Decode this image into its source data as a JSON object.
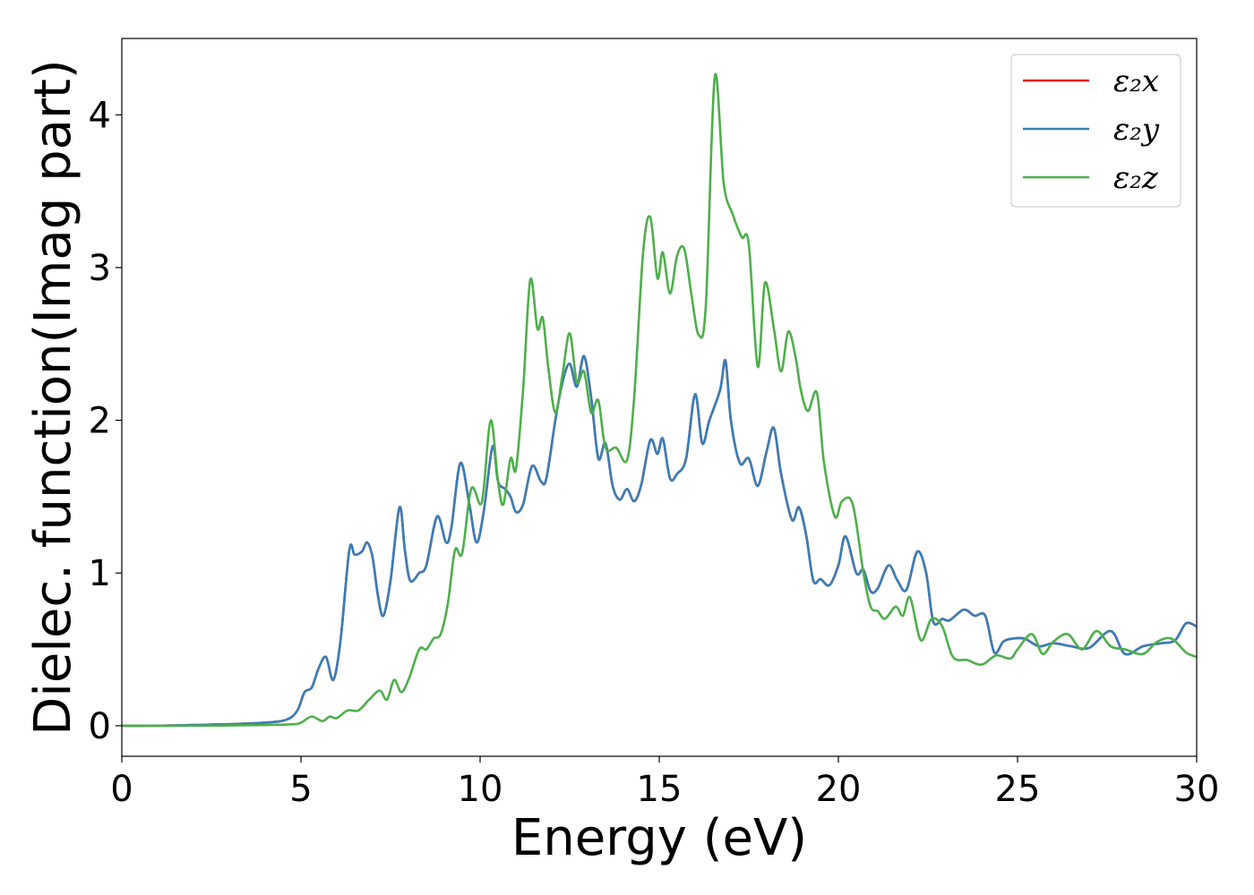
{
  "chart_data": {
    "type": "line",
    "xlabel": "Energy (eV)",
    "ylabel": "Dielec. function(Imag part)",
    "xlim": [
      0,
      30
    ],
    "ylim": [
      -0.2,
      4.5
    ],
    "xticks": [
      0,
      5,
      10,
      15,
      20,
      25,
      30
    ],
    "yticks": [
      0,
      1,
      2,
      3,
      4
    ],
    "xtick_labels": [
      "0",
      "5",
      "10",
      "15",
      "20",
      "25",
      "30"
    ],
    "ytick_labels": [
      "0",
      "1",
      "2",
      "3",
      "4"
    ],
    "grid": false,
    "legend_position": "top-right",
    "series": [
      {
        "name": "ε₂x",
        "color": "#e41a1c",
        "x": [
          0,
          1,
          2,
          3,
          4,
          4.6,
          4.9,
          5.1,
          5.3,
          5.5,
          5.7,
          5.9,
          6.1,
          6.35,
          6.5,
          6.7,
          6.85,
          7.0,
          7.15,
          7.3,
          7.5,
          7.75,
          7.9,
          8.05,
          8.3,
          8.5,
          8.8,
          9.05,
          9.2,
          9.45,
          9.7,
          9.9,
          10.1,
          10.35,
          10.5,
          10.7,
          10.85,
          11.0,
          11.2,
          11.45,
          11.7,
          11.85,
          12.1,
          12.3,
          12.5,
          12.7,
          12.9,
          13.1,
          13.3,
          13.5,
          13.7,
          13.9,
          14.1,
          14.3,
          14.5,
          14.75,
          14.95,
          15.1,
          15.3,
          15.5,
          15.75,
          16.0,
          16.2,
          16.4,
          16.7,
          16.85,
          17.0,
          17.25,
          17.5,
          17.75,
          18.0,
          18.2,
          18.4,
          18.7,
          18.9,
          19.1,
          19.3,
          19.5,
          19.75,
          20.0,
          20.2,
          20.5,
          20.7,
          20.9,
          21.1,
          21.4,
          21.65,
          21.9,
          22.2,
          22.45,
          22.65,
          22.9,
          23.1,
          23.5,
          23.8,
          24.1,
          24.35,
          24.6,
          24.85,
          25.2,
          25.6,
          26.0,
          26.5,
          27.0,
          27.6,
          28.0,
          28.5,
          29.0,
          29.4,
          29.7,
          30.0
        ],
        "y": [
          0.0,
          0.0,
          0.005,
          0.01,
          0.02,
          0.04,
          0.1,
          0.22,
          0.25,
          0.38,
          0.45,
          0.3,
          0.55,
          1.15,
          1.12,
          1.14,
          1.2,
          1.1,
          0.85,
          0.72,
          0.95,
          1.43,
          1.15,
          0.95,
          1.0,
          1.05,
          1.37,
          1.2,
          1.3,
          1.72,
          1.45,
          1.2,
          1.4,
          1.83,
          1.6,
          1.55,
          1.5,
          1.4,
          1.45,
          1.7,
          1.6,
          1.62,
          2.0,
          2.25,
          2.37,
          2.22,
          2.42,
          2.15,
          1.75,
          1.85,
          1.57,
          1.48,
          1.55,
          1.47,
          1.58,
          1.87,
          1.78,
          1.88,
          1.62,
          1.65,
          1.75,
          2.17,
          1.85,
          2.0,
          2.2,
          2.39,
          2.0,
          1.72,
          1.75,
          1.57,
          1.8,
          1.95,
          1.65,
          1.35,
          1.43,
          1.25,
          0.95,
          0.96,
          0.92,
          1.05,
          1.24,
          1.0,
          1.02,
          0.88,
          0.9,
          1.05,
          0.95,
          0.89,
          1.14,
          1.0,
          0.68,
          0.7,
          0.69,
          0.76,
          0.72,
          0.72,
          0.48,
          0.55,
          0.57,
          0.57,
          0.52,
          0.54,
          0.52,
          0.51,
          0.62,
          0.47,
          0.52,
          0.54,
          0.56,
          0.67,
          0.65
        ]
      },
      {
        "name": "ε₂y",
        "color": "#377eb8",
        "x": [
          0,
          1,
          2,
          3,
          4,
          4.6,
          4.9,
          5.1,
          5.3,
          5.5,
          5.7,
          5.9,
          6.1,
          6.35,
          6.5,
          6.7,
          6.85,
          7.0,
          7.15,
          7.3,
          7.5,
          7.75,
          7.9,
          8.05,
          8.3,
          8.5,
          8.8,
          9.05,
          9.2,
          9.45,
          9.7,
          9.9,
          10.1,
          10.35,
          10.5,
          10.7,
          10.85,
          11.0,
          11.2,
          11.45,
          11.7,
          11.85,
          12.1,
          12.3,
          12.5,
          12.7,
          12.9,
          13.1,
          13.3,
          13.5,
          13.7,
          13.9,
          14.1,
          14.3,
          14.5,
          14.75,
          14.95,
          15.1,
          15.3,
          15.5,
          15.75,
          16.0,
          16.2,
          16.4,
          16.7,
          16.85,
          17.0,
          17.25,
          17.5,
          17.75,
          18.0,
          18.2,
          18.4,
          18.7,
          18.9,
          19.1,
          19.3,
          19.5,
          19.75,
          20.0,
          20.2,
          20.5,
          20.7,
          20.9,
          21.1,
          21.4,
          21.65,
          21.9,
          22.2,
          22.45,
          22.65,
          22.9,
          23.1,
          23.5,
          23.8,
          24.1,
          24.35,
          24.6,
          24.85,
          25.2,
          25.6,
          26.0,
          26.5,
          27.0,
          27.6,
          28.0,
          28.5,
          29.0,
          29.4,
          29.7,
          30.0
        ],
        "y": [
          0.0,
          0.0,
          0.005,
          0.01,
          0.02,
          0.04,
          0.1,
          0.22,
          0.25,
          0.38,
          0.45,
          0.3,
          0.55,
          1.15,
          1.12,
          1.14,
          1.2,
          1.1,
          0.85,
          0.72,
          0.95,
          1.43,
          1.15,
          0.95,
          1.0,
          1.05,
          1.37,
          1.2,
          1.3,
          1.72,
          1.45,
          1.2,
          1.4,
          1.83,
          1.6,
          1.55,
          1.5,
          1.4,
          1.45,
          1.7,
          1.6,
          1.62,
          2.0,
          2.25,
          2.37,
          2.22,
          2.42,
          2.15,
          1.75,
          1.85,
          1.57,
          1.48,
          1.55,
          1.47,
          1.58,
          1.87,
          1.78,
          1.88,
          1.62,
          1.65,
          1.75,
          2.17,
          1.85,
          2.0,
          2.2,
          2.39,
          2.0,
          1.72,
          1.75,
          1.57,
          1.8,
          1.95,
          1.65,
          1.35,
          1.43,
          1.25,
          0.95,
          0.96,
          0.92,
          1.05,
          1.24,
          1.0,
          1.02,
          0.88,
          0.9,
          1.05,
          0.95,
          0.89,
          1.14,
          1.0,
          0.68,
          0.7,
          0.69,
          0.76,
          0.72,
          0.72,
          0.48,
          0.55,
          0.57,
          0.57,
          0.52,
          0.54,
          0.52,
          0.51,
          0.62,
          0.47,
          0.52,
          0.54,
          0.56,
          0.67,
          0.65
        ]
      },
      {
        "name": "ε₂z",
        "color": "#4daf4a",
        "x": [
          0,
          2,
          4,
          4.8,
          5.0,
          5.3,
          5.6,
          5.8,
          6.0,
          6.3,
          6.6,
          6.9,
          7.2,
          7.4,
          7.6,
          7.8,
          8.0,
          8.3,
          8.5,
          8.7,
          8.9,
          9.1,
          9.3,
          9.5,
          9.75,
          10.0,
          10.1,
          10.3,
          10.5,
          10.65,
          10.85,
          11.0,
          11.2,
          11.4,
          11.6,
          11.75,
          11.9,
          12.1,
          12.3,
          12.5,
          12.7,
          12.9,
          13.1,
          13.3,
          13.5,
          13.8,
          14.1,
          14.3,
          14.55,
          14.75,
          14.95,
          15.1,
          15.3,
          15.5,
          15.7,
          15.9,
          16.1,
          16.3,
          16.55,
          16.8,
          17.05,
          17.3,
          17.5,
          17.75,
          17.95,
          18.2,
          18.4,
          18.6,
          18.8,
          18.95,
          19.15,
          19.4,
          19.6,
          19.9,
          20.1,
          20.4,
          20.7,
          20.9,
          21.1,
          21.3,
          21.6,
          21.8,
          22.0,
          22.3,
          22.6,
          22.9,
          23.2,
          23.6,
          24.0,
          24.4,
          24.8,
          25.0,
          25.4,
          25.7,
          26.0,
          26.4,
          26.8,
          27.2,
          27.6,
          28.0,
          28.5,
          28.9,
          29.3,
          29.7,
          30.0
        ],
        "y": [
          0.0,
          0.0,
          0.005,
          0.01,
          0.02,
          0.06,
          0.03,
          0.06,
          0.05,
          0.1,
          0.1,
          0.17,
          0.23,
          0.17,
          0.3,
          0.22,
          0.3,
          0.5,
          0.5,
          0.57,
          0.6,
          0.8,
          1.15,
          1.13,
          1.55,
          1.45,
          1.55,
          2.0,
          1.6,
          1.45,
          1.75,
          1.68,
          2.2,
          2.92,
          2.6,
          2.67,
          2.35,
          2.05,
          2.3,
          2.57,
          2.25,
          2.32,
          2.05,
          2.13,
          1.82,
          1.82,
          1.74,
          2.15,
          3.1,
          3.33,
          2.93,
          3.1,
          2.83,
          3.08,
          3.12,
          2.82,
          2.56,
          2.75,
          4.25,
          3.55,
          3.35,
          3.2,
          3.15,
          2.35,
          2.9,
          2.6,
          2.32,
          2.58,
          2.42,
          2.2,
          2.06,
          2.18,
          1.72,
          1.37,
          1.47,
          1.45,
          1.0,
          0.78,
          0.75,
          0.7,
          0.78,
          0.72,
          0.84,
          0.56,
          0.7,
          0.65,
          0.45,
          0.43,
          0.4,
          0.46,
          0.44,
          0.5,
          0.6,
          0.47,
          0.55,
          0.6,
          0.5,
          0.62,
          0.52,
          0.5,
          0.47,
          0.55,
          0.57,
          0.48,
          0.45
        ]
      }
    ]
  }
}
